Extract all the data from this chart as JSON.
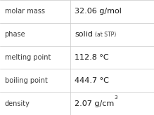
{
  "rows": [
    {
      "label": "molar mass",
      "value": "32.06 g/mol"
    },
    {
      "label": "phase",
      "value": "solid  (at STP)"
    },
    {
      "label": "melting point",
      "value": "112.8 °C"
    },
    {
      "label": "boiling point",
      "value": "444.7 °C"
    },
    {
      "label": "density",
      "value": "2.07 g/cm³"
    }
  ],
  "bg_color": "#ffffff",
  "grid_color": "#c8c8c8",
  "label_color": "#3a3a3a",
  "value_color": "#1a1a1a",
  "label_fontsize": 7.0,
  "value_fontsize": 8.0,
  "small_fontsize": 5.5,
  "super_fontsize": 5.0,
  "col_split": 0.455,
  "figwidth": 2.19,
  "figheight": 1.64,
  "dpi": 100
}
